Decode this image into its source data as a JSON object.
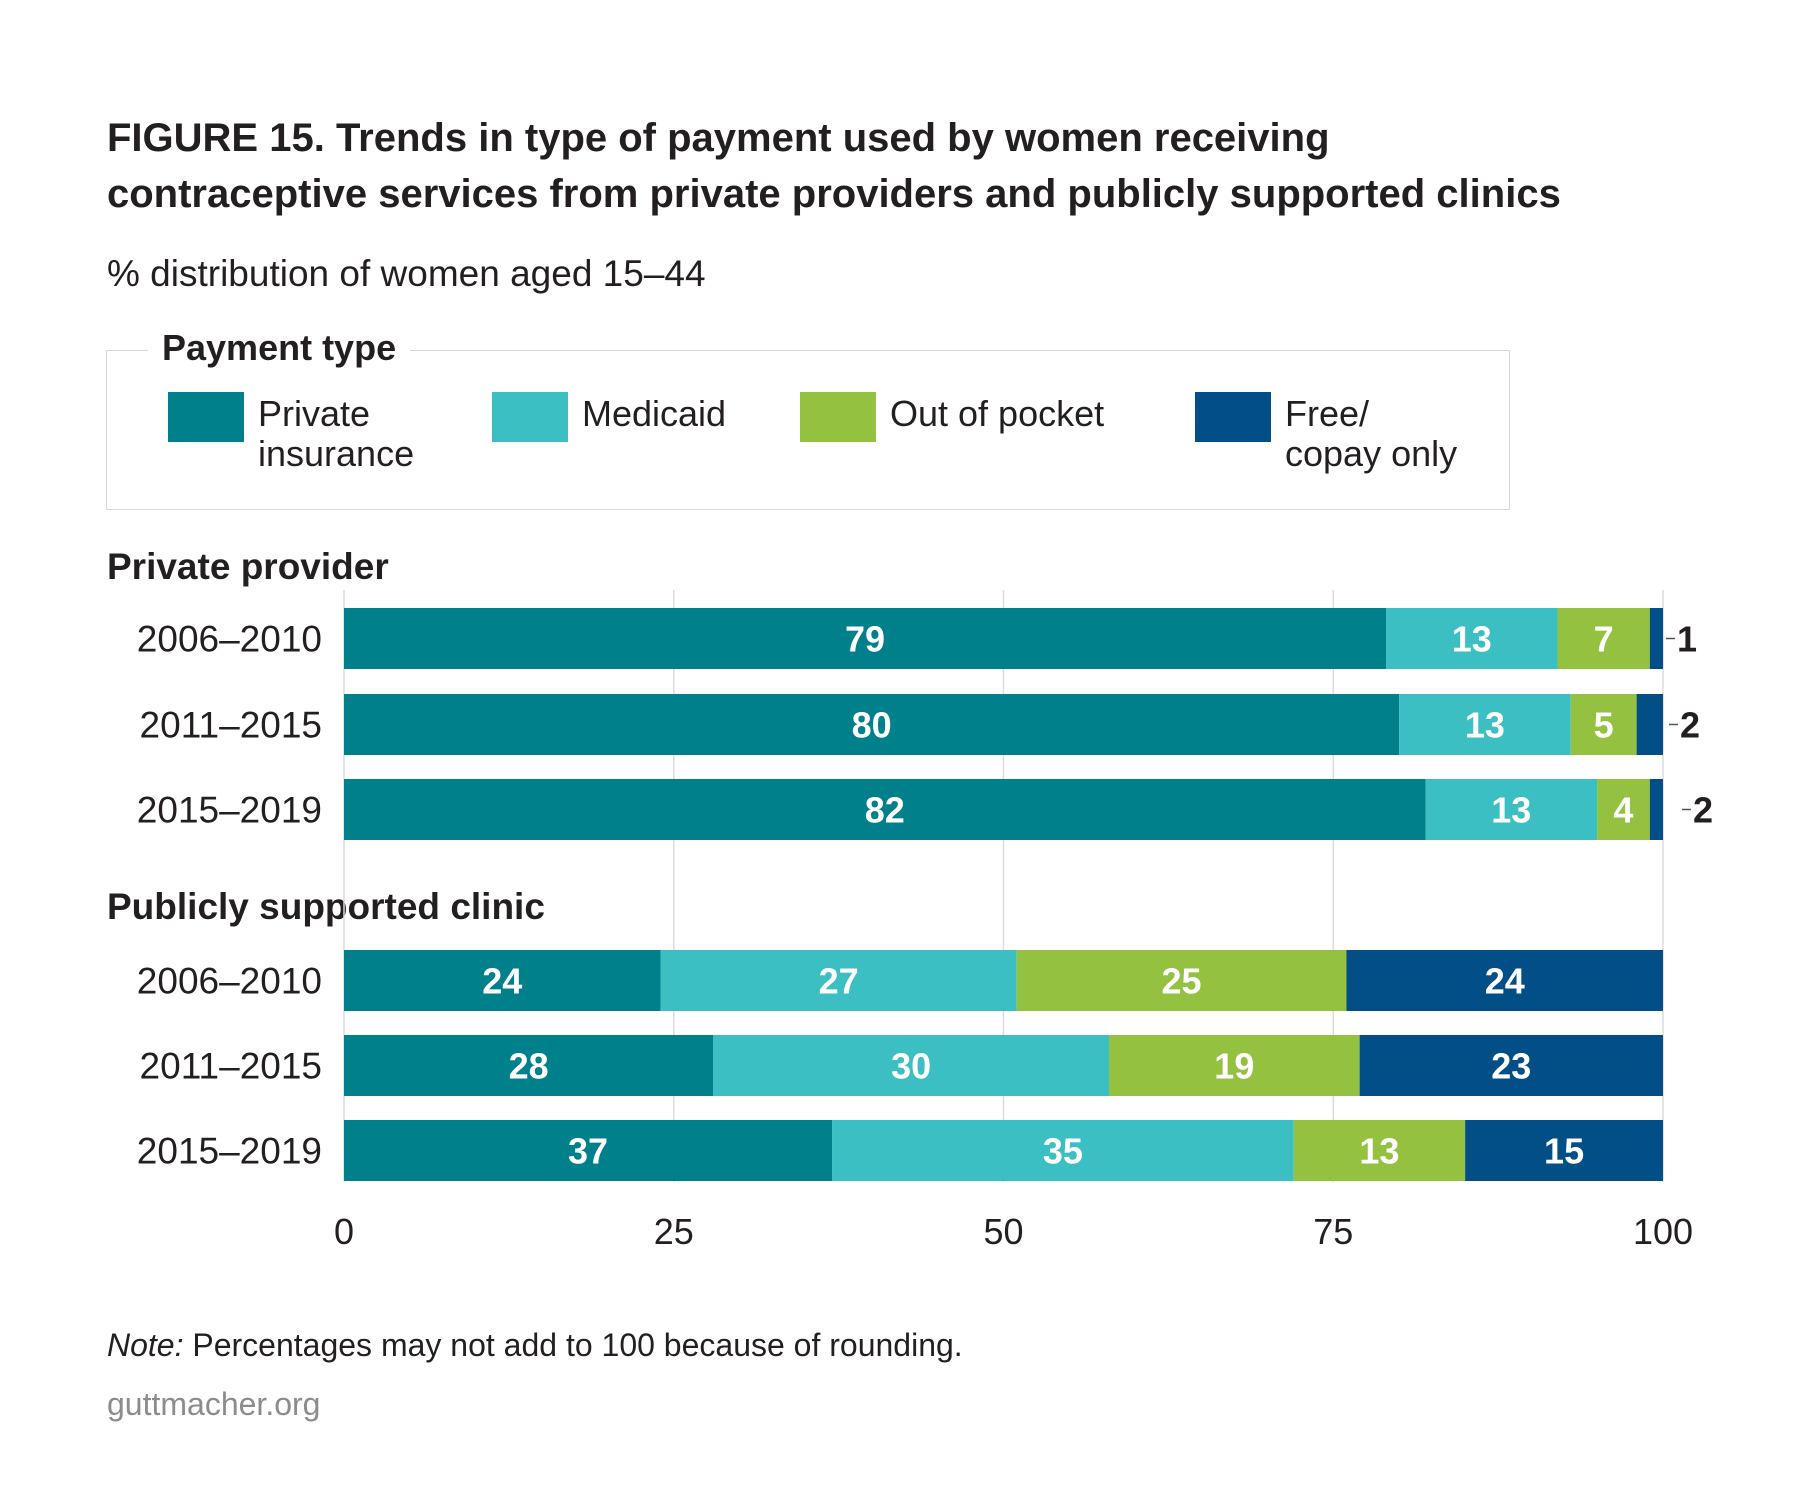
{
  "title_line1": "FIGURE 15. Trends in type of payment used by women receiving",
  "title_line2": "contraceptive services from private providers and publicly supported clinics",
  "subtitle": "% distribution of women aged 15–44",
  "legend": {
    "title": "Payment type",
    "items": [
      {
        "lines": [
          "Private",
          "insurance"
        ],
        "color": "#00808b"
      },
      {
        "lines": [
          "Medicaid",
          ""
        ],
        "color": "#3bbfc3"
      },
      {
        "lines": [
          "Out of pocket",
          ""
        ],
        "color": "#94c13f"
      },
      {
        "lines": [
          "Free/",
          "copay only"
        ],
        "color": "#024e86"
      }
    ]
  },
  "note_prefix": "Note:",
  "note_text": " Percentages may not add to 100 because of rounding.",
  "source": "guttmacher.org",
  "chart_data": {
    "type": "bar",
    "orientation": "horizontal",
    "stacked": true,
    "xlim": [
      0,
      100
    ],
    "x_ticks": [
      0,
      25,
      50,
      75,
      100
    ],
    "series_names": [
      "Private insurance",
      "Medicaid",
      "Out of pocket",
      "Free/copay only"
    ],
    "colors": [
      "#00808b",
      "#3bbfc3",
      "#94c13f",
      "#024e86"
    ],
    "groups": [
      {
        "name": "Private provider",
        "categories": [
          "2006–2010",
          "2011–2015",
          "2015–2019"
        ],
        "values": [
          [
            79,
            13,
            7,
            1
          ],
          [
            80,
            13,
            5,
            2
          ],
          [
            82,
            13,
            4,
            2
          ]
        ]
      },
      {
        "name": "Publicly supported clinic",
        "categories": [
          "2006–2010",
          "2011–2015",
          "2015–2019"
        ],
        "values": [
          [
            24,
            27,
            25,
            24
          ],
          [
            28,
            30,
            19,
            23
          ],
          [
            37,
            35,
            13,
            15
          ]
        ]
      }
    ]
  }
}
